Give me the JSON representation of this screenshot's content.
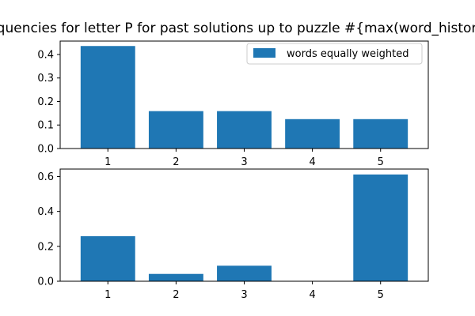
{
  "chart_data": [
    {
      "type": "bar",
      "title": "Frequencies for letter P for past solutions up to puzzle #{max(word_history)}",
      "categories": [
        "1",
        "2",
        "3",
        "4",
        "5"
      ],
      "series": [
        {
          "name": "words equally weighted",
          "values": [
            0.436,
            0.159,
            0.159,
            0.125,
            0.125
          ]
        }
      ],
      "yticks": [
        "0.0",
        "0.1",
        "0.2",
        "0.3",
        "0.4"
      ],
      "ylim": [
        0,
        0.457
      ],
      "legend": "top-right",
      "grid": false,
      "color": "#1f77b4"
    },
    {
      "type": "bar",
      "title": "",
      "categories": [
        "1",
        "2",
        "3",
        "4",
        "5"
      ],
      "series": [
        {
          "values": [
            0.258,
            0.042,
            0.089,
            0.0,
            0.612
          ]
        }
      ],
      "yticks": [
        "0.0",
        "0.2",
        "0.4",
        "0.6"
      ],
      "ylim": [
        0,
        0.643
      ],
      "grid": false,
      "color": "#1f77b4"
    }
  ]
}
